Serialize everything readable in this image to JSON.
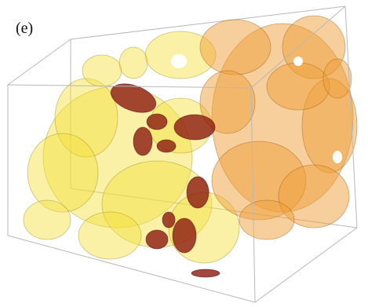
{
  "panel_label": "(e)"
}
